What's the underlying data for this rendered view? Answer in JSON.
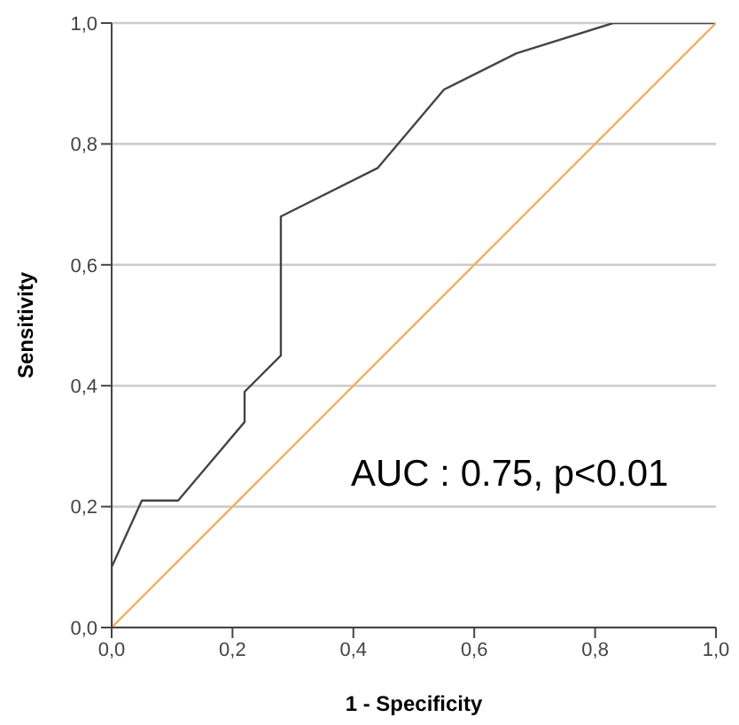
{
  "chart_data": {
    "type": "line",
    "xlabel": "1 - Specificity",
    "ylabel": "Sensitivity",
    "series": [
      {
        "color": "#444444",
        "x": [
          0,
          0,
          0.05,
          0.11,
          0.22,
          0.22,
          0.28,
          0.28,
          0.44,
          0.55,
          0.67,
          0.83,
          1
        ],
        "values": [
          0,
          0.1,
          0.21,
          0.21,
          0.34,
          0.39,
          0.45,
          0.68,
          0.76,
          0.89,
          0.95,
          1,
          1
        ]
      },
      {
        "color": "#f0b060",
        "x": [
          0,
          1
        ],
        "values": [
          0,
          1
        ]
      }
    ],
    "xlim": [
      0,
      1
    ],
    "ylim": [
      0,
      1
    ],
    "xticks": [
      {
        "value": 0,
        "label": "0,0"
      },
      {
        "value": 0.2,
        "label": "0,2"
      },
      {
        "value": 0.4,
        "label": "0,4"
      },
      {
        "value": 0.6,
        "label": "0,6"
      },
      {
        "value": 0.8,
        "label": "0,8"
      },
      {
        "value": 1,
        "label": "1,0"
      }
    ],
    "yticks": [
      {
        "value": 0,
        "label": "0,0"
      },
      {
        "value": 0.2,
        "label": "0,2"
      },
      {
        "value": 0.4,
        "label": "0,4"
      },
      {
        "value": 0.6,
        "label": "0,6"
      },
      {
        "value": 0.8,
        "label": "0,8"
      },
      {
        "value": 1,
        "label": "1,0"
      }
    ],
    "grid": "y",
    "marker": "none",
    "annotations": [
      "AUC : 0.75, p<0.01"
    ]
  }
}
